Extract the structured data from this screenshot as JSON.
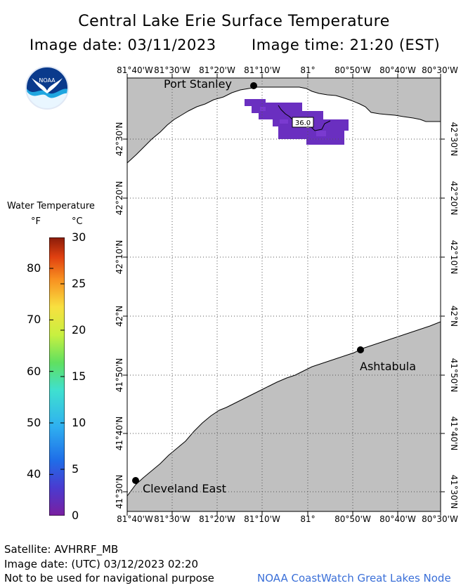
{
  "header": {
    "title": "Central Lake Erie Surface Temperature",
    "image_date": "Image date: 03/11/2023",
    "image_time": "Image time: 21:20 (EST)"
  },
  "logo": {
    "text": "NOAA",
    "icon": "noaa-logo-icon"
  },
  "legend": {
    "title": "Water Temperature",
    "unit_f": "°F",
    "unit_c": "°C",
    "f_ticks": [
      "80",
      "70",
      "60",
      "50",
      "40"
    ],
    "c_ticks": [
      "30",
      "25",
      "20",
      "15",
      "10",
      "5",
      "0"
    ]
  },
  "map": {
    "lon_labels": [
      "81°40'W",
      "81°30'W",
      "81°20'W",
      "81°10'W",
      "81°",
      "80°50'W",
      "80°40'W",
      "80°30'W"
    ],
    "lat_labels": [
      "42°30'N",
      "42°20'N",
      "42°10'N",
      "42°N",
      "41°50'N",
      "41°40'N",
      "41°30'N"
    ],
    "cities": {
      "port_stanley": "Port Stanley",
      "ashtabula": "Ashtabula",
      "cleveland_east": "Cleveland East"
    },
    "contour_label": "36.0",
    "colors": {
      "land": "#c0c0c0",
      "water": "#ffffff",
      "cold_water": "#6a2fc0"
    }
  },
  "footer": {
    "satellite": "Satellite: AVHRRF_MB",
    "utc_date": "Image date: (UTC) 03/12/2023  02:20",
    "disclaimer": "Not to be used for navigational purpose",
    "credit": "NOAA CoastWatch Great Lakes Node"
  }
}
